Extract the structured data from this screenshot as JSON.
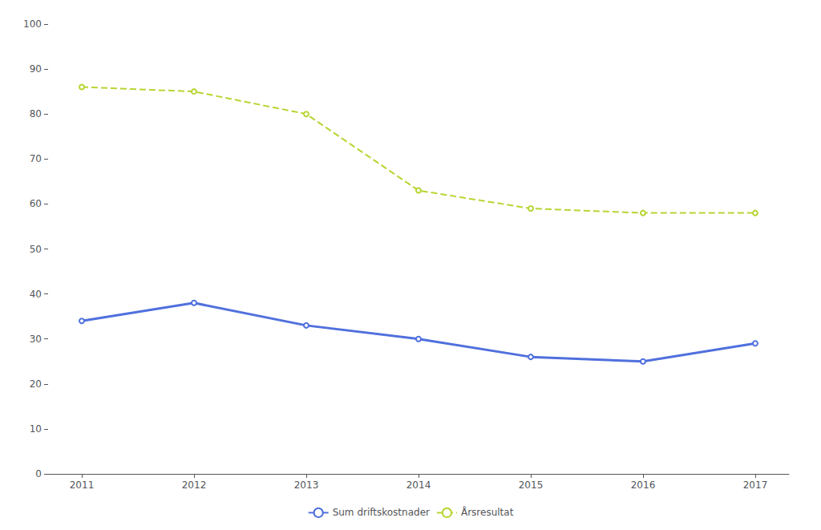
{
  "chart_data": {
    "type": "line",
    "x": [
      2011,
      2012,
      2013,
      2014,
      2015,
      2016,
      2017
    ],
    "series": [
      {
        "name": "Sum driftskostnader",
        "values": [
          34,
          38,
          33,
          30,
          26,
          25,
          29
        ],
        "line_style": "solid"
      },
      {
        "name": "Årsresultat",
        "values": [
          86,
          85,
          80,
          63,
          59,
          58,
          58
        ],
        "line_style": "dashed"
      }
    ],
    "xlim": [
      2010.7,
      2017.3
    ],
    "xticks": [
      2011,
      2012,
      2013,
      2014,
      2015,
      2016,
      2017
    ],
    "ylim": [
      0,
      100
    ],
    "yticks": [
      0,
      10,
      20,
      30,
      40,
      50,
      60,
      70,
      80,
      90,
      100
    ],
    "grid": false,
    "legend": "bottom"
  }
}
